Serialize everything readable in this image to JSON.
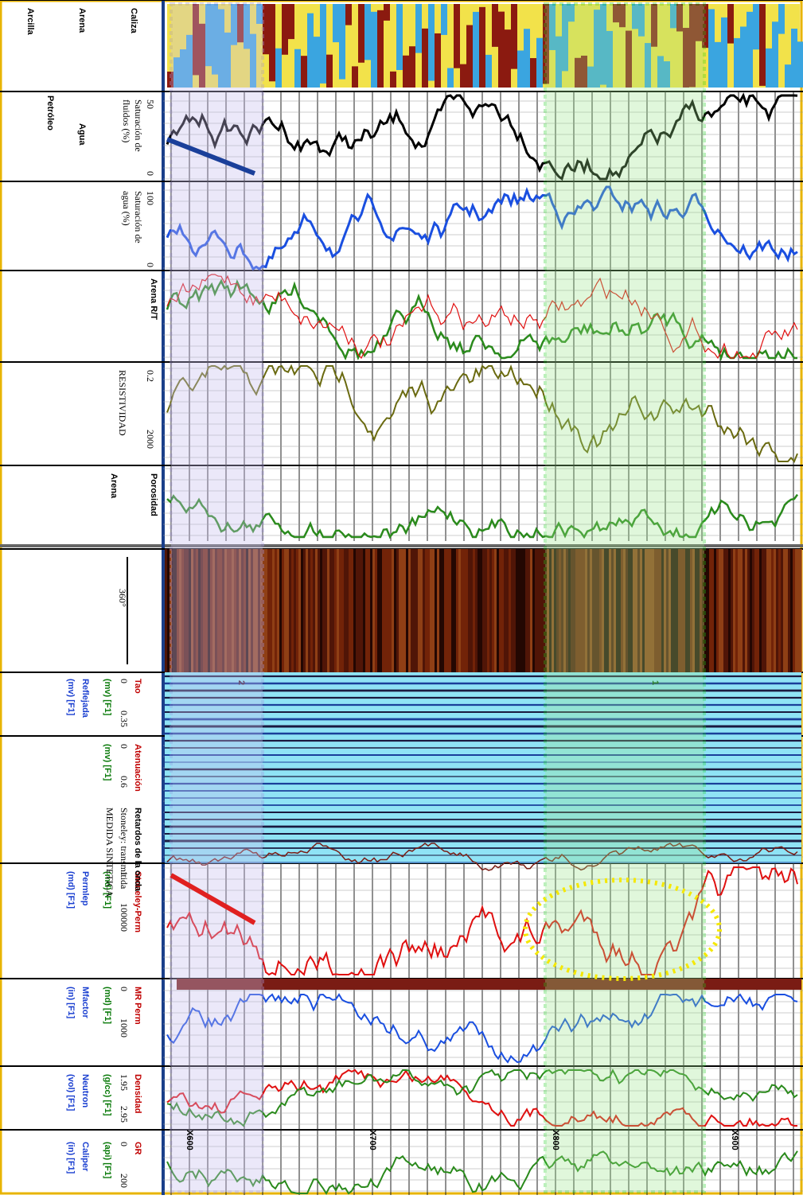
{
  "header": {
    "tracks": [
      {
        "name": "GR",
        "scale_min": "0",
        "scale_max": "200",
        "unit": "(api) [F1]",
        "extra": "Caliper",
        "extra_unit": "(in) [F1]"
      },
      {
        "name": "Densidad",
        "scale_min": "1.95",
        "scale_max": "2.95",
        "unit": "(g/cc) [F1]",
        "extra": "Neutron",
        "extra_unit": "(vol) [F1]"
      },
      {
        "name": "MR Perm",
        "scale_min": "0",
        "scale_max": "1000",
        "unit": "(md) [F1]",
        "extra": "Mfactor",
        "extra_unit": "(in) [F1]"
      },
      {
        "name": "Stoneley-Perm",
        "scale_min": "1",
        "scale_max": "100000",
        "unit": "(md) [F1]",
        "extra": "Permlep",
        "extra_unit": "(md) [F1]"
      },
      {
        "name": "Atenuación",
        "scale_min": "0",
        "scale_max": "0.6",
        "unit": "(mv) [F1]"
      },
      {
        "name": "Retardos de la onda",
        "extra": "Stoneley: transmitida",
        "extra_unit": "MEDIDA  SINTETICA"
      },
      {
        "name": "Tao",
        "scale_min": "0",
        "scale_max": "0.35",
        "unit": "(mv) [F1]",
        "extra": "Reflejada",
        "extra_unit": "(mv) [F1]"
      }
    ],
    "image_label": "360°",
    "upper": {
      "porosity": [
        "Porosidad",
        "Arena"
      ],
      "resistivity": [
        "RESISTIVIDAD",
        "0.2",
        "2000"
      ],
      "lith2": "Arena R/T",
      "water_sat": [
        "Saturación de",
        "agua (%)",
        "100",
        "0"
      ],
      "fluid_sat": [
        "Saturación de",
        "fluidos (%)",
        "50",
        "0"
      ],
      "fluids": [
        "Petróleo",
        "Agua"
      ],
      "lith": [
        "Arcilla",
        "Arena",
        "Caliza"
      ]
    }
  },
  "depths": [
    "X600",
    "X700",
    "X800",
    "X900"
  ],
  "markers": [
    "2",
    "1"
  ]
}
